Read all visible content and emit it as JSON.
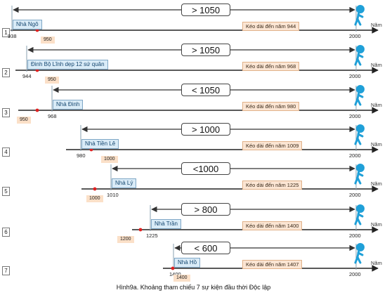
{
  "caption": "Hình9a. Khoảng tham chiếu 7 sự kiện đầu thời Độc lập",
  "axis_unit": "Năm",
  "colors": {
    "axis": "#222222",
    "guide": "#8aa0b0",
    "event_dot": "#e02020",
    "figure": "#1fa0d8",
    "dynasty_fill": "#d9ebf7",
    "end_fill": "#fbe5d3"
  },
  "icons": {
    "end_marker": "walking-person-icon",
    "arrow": "double-arrow-icon"
  },
  "rows": [
    {
      "index": "1",
      "duration": "> 1050",
      "dynasty": "Nhà Ngô",
      "start_year": "938",
      "ref_year": "950",
      "end_label": "Kéo dài đến năm 944",
      "end_year": "2000"
    },
    {
      "index": "2",
      "duration": "> 1050",
      "dynasty": "Đinh Bộ Lĩnh dẹp 12 sứ quân",
      "start_year": "944",
      "ref_year": "950",
      "end_label": "Kéo dài đến năm 968",
      "end_year": "2000"
    },
    {
      "index": "3",
      "duration": "< 1050",
      "dynasty": "Nhà Đinh",
      "start_year": "968",
      "ref_year": "950",
      "end_label": "Kéo dài đến năm 980",
      "end_year": "2000"
    },
    {
      "index": "4",
      "duration": "> 1000",
      "dynasty": "Nhà Tiền Lê",
      "start_year": "980",
      "ref_year": "1000",
      "end_label": "Kéo dài đến năm 1009",
      "end_year": "2000"
    },
    {
      "index": "5",
      "duration": "<1000",
      "dynasty": "Nhà Lý",
      "start_year": "1010",
      "ref_year": "1000",
      "end_label": "Kéo dài đến năm 1225",
      "end_year": "2000"
    },
    {
      "index": "6",
      "duration": "> 800",
      "dynasty": "Nhà Trần",
      "start_year": "1225",
      "ref_year": "1200",
      "end_label": "Kéo dài đến năm 1400",
      "end_year": "2000"
    },
    {
      "index": "7",
      "duration": "< 600",
      "dynasty": "Nhà Hồ",
      "start_year": "1400",
      "ref_year": "1400",
      "end_label": "Kéo dài đến năm 1407",
      "end_year": "2000"
    }
  ]
}
